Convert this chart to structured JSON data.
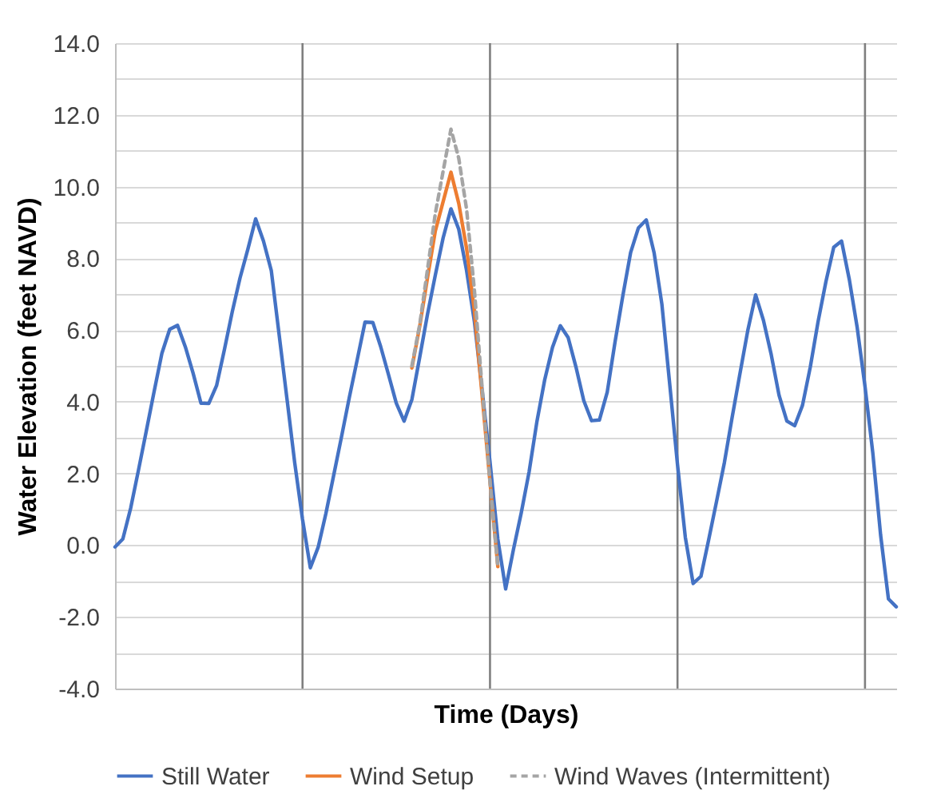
{
  "chart_data": {
    "type": "line",
    "xlabel": "Time (Days)",
    "ylabel": "Water Elevation (feet NAVD)",
    "categories": [
      null,
      null,
      null,
      null,
      null,
      null,
      null,
      null,
      null,
      null,
      null,
      null,
      null,
      null,
      null,
      null,
      null,
      null,
      null,
      null,
      null,
      null,
      null,
      null,
      null,
      null,
      null,
      null,
      null,
      null,
      null,
      null,
      null,
      null,
      null,
      null,
      null,
      null,
      null,
      null,
      null,
      null,
      null,
      null,
      null,
      null,
      null,
      null,
      null,
      null,
      null,
      null,
      null,
      null,
      null,
      null,
      null,
      null,
      null,
      null,
      null,
      null,
      null,
      null,
      null,
      null,
      null,
      null,
      null,
      null,
      null,
      null,
      null,
      null,
      null,
      null,
      null,
      null,
      null,
      null,
      null,
      null,
      null,
      null,
      null,
      null,
      null,
      null,
      null,
      null,
      null,
      null,
      null,
      null,
      null,
      null,
      null,
      null,
      null,
      null,
      null
    ],
    "ylim": [
      -4,
      14
    ],
    "yticks": [
      {
        "value": -4,
        "label": "-4.0"
      },
      {
        "value": -3,
        "label": null
      },
      {
        "value": -2,
        "label": "-2.0"
      },
      {
        "value": -1,
        "label": null
      },
      {
        "value": 0,
        "label": "0.0"
      },
      {
        "value": 1,
        "label": null
      },
      {
        "value": 2,
        "label": "2.0"
      },
      {
        "value": 3,
        "label": null
      },
      {
        "value": 4,
        "label": "4.0"
      },
      {
        "value": 5,
        "label": null
      },
      {
        "value": 6,
        "label": "6.0"
      },
      {
        "value": 7,
        "label": null
      },
      {
        "value": 8,
        "label": "8.0"
      },
      {
        "value": 9,
        "label": null
      },
      {
        "value": 10,
        "label": "10.0"
      },
      {
        "value": 11,
        "label": null
      },
      {
        "value": 12,
        "label": "12.0"
      },
      {
        "value": 13,
        "label": null
      },
      {
        "value": 14,
        "label": "14.0"
      }
    ],
    "tick_labels": "y",
    "grid": true,
    "legend": "bottom",
    "series": [
      {
        "name": "Still Water",
        "color": "#4472c4",
        "line_style": "solid",
        "values": [
          -0.05,
          0.17,
          1.03,
          2.09,
          3.18,
          4.28,
          5.35,
          6.02,
          6.13,
          5.53,
          4.79,
          3.96,
          3.95,
          4.45,
          5.45,
          6.5,
          7.45,
          8.25,
          9.1,
          8.48,
          7.66,
          5.88,
          4.1,
          2.3,
          0.72,
          -0.63,
          -0.06,
          0.89,
          1.96,
          3.03,
          4.13,
          5.17,
          6.22,
          6.21,
          5.54,
          4.76,
          3.96,
          3.46,
          4.06,
          5.24,
          6.44,
          7.53,
          8.57,
          9.38,
          8.81,
          7.66,
          6.24,
          4.31,
          2.32,
          0.17,
          -1.22,
          -0.12,
          0.9,
          2.04,
          3.44,
          4.61,
          5.52,
          6.12,
          5.79,
          4.97,
          4.03,
          3.47,
          3.49,
          4.26,
          5.66,
          6.95,
          8.16,
          8.85,
          9.07,
          8.16,
          6.72,
          4.5,
          2.25,
          0.22,
          -1.07,
          -0.87,
          0.16,
          1.22,
          2.3,
          3.57,
          4.79,
          5.99,
          6.98,
          6.27,
          5.31,
          4.18,
          3.46,
          3.33,
          3.9,
          4.97,
          6.24,
          7.35,
          8.31,
          8.48,
          7.4,
          6.07,
          4.43,
          2.57,
          0.28,
          -1.5,
          -1.72
        ]
      },
      {
        "name": "Wind Setup",
        "color": "#ed7d31",
        "line_style": "solid",
        "values": [
          null,
          null,
          null,
          null,
          null,
          null,
          null,
          null,
          null,
          null,
          null,
          null,
          null,
          null,
          null,
          null,
          null,
          null,
          null,
          null,
          null,
          null,
          null,
          null,
          null,
          null,
          null,
          null,
          null,
          null,
          null,
          null,
          null,
          null,
          null,
          null,
          null,
          null,
          4.94,
          6.1,
          7.46,
          8.76,
          9.58,
          10.4,
          9.53,
          8.28,
          6.53,
          4.15,
          1.76,
          -0.6,
          null,
          null,
          null,
          null,
          null,
          null,
          null,
          null,
          null,
          null,
          null,
          null,
          null,
          null,
          null,
          null,
          null,
          null,
          null,
          null,
          null,
          null,
          null,
          null,
          null,
          null,
          null,
          null,
          null,
          null,
          null,
          null,
          null,
          null,
          null,
          null,
          null,
          null,
          null,
          null,
          null,
          null,
          null,
          null,
          null,
          null,
          null,
          null,
          null,
          null,
          null
        ]
      },
      {
        "name": "Wind Waves (Intermittent)",
        "color": "#a5a5a5",
        "line_style": "dashed",
        "values": [
          null,
          null,
          null,
          null,
          null,
          null,
          null,
          null,
          null,
          null,
          null,
          null,
          null,
          null,
          null,
          null,
          null,
          null,
          null,
          null,
          null,
          null,
          null,
          null,
          null,
          null,
          null,
          null,
          null,
          null,
          null,
          null,
          null,
          null,
          null,
          null,
          null,
          null,
          5.0,
          6.15,
          7.69,
          9.25,
          10.43,
          11.6,
          10.79,
          9.37,
          7.12,
          4.36,
          1.76,
          -0.6,
          null,
          null,
          null,
          null,
          null,
          null,
          null,
          null,
          null,
          null,
          null,
          null,
          null,
          null,
          null,
          null,
          null,
          null,
          null,
          null,
          null,
          null,
          null,
          null,
          null,
          null,
          null,
          null,
          null,
          null,
          null,
          null,
          null,
          null,
          null,
          null,
          null,
          null,
          null,
          null,
          null,
          null,
          null,
          null,
          null,
          null,
          null,
          null,
          null,
          null,
          null
        ]
      }
    ]
  }
}
